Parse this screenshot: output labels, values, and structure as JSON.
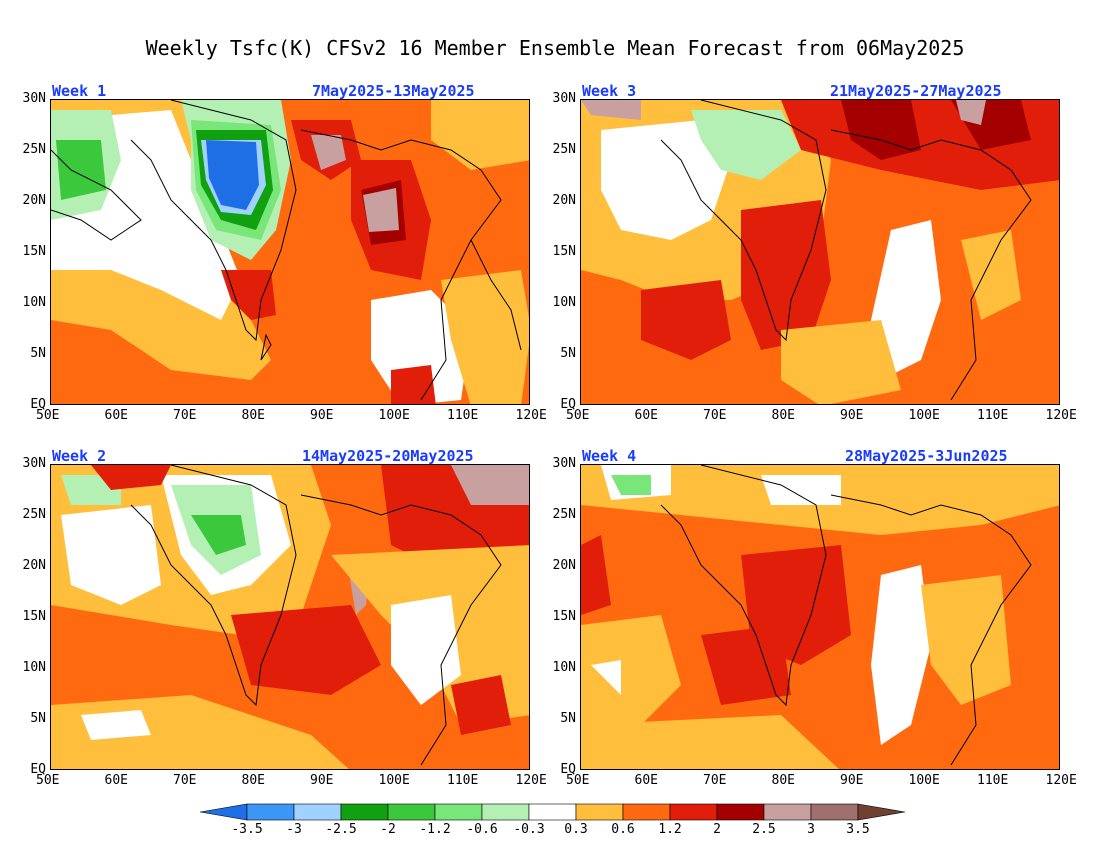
{
  "title": "Weekly Tsfc(K) CFSv2 16 Member Ensemble Mean Forecast from 06May2025",
  "panels": [
    {
      "week": "Week 1",
      "dates": "7May2025-13May2025"
    },
    {
      "week": "Week 3",
      "dates": "21May2025-27May2025"
    },
    {
      "week": "Week 2",
      "dates": "14May2025-20May2025"
    },
    {
      "week": "Week 4",
      "dates": "28May2025-3Jun2025"
    }
  ],
  "lat_ticks": [
    "30N",
    "25N",
    "20N",
    "15N",
    "10N",
    "5N",
    "EQ"
  ],
  "lon_ticks": [
    "50E",
    "60E",
    "70E",
    "80E",
    "90E",
    "100E",
    "110E",
    "120E"
  ],
  "colorbar": {
    "labels": [
      "-3.5",
      "-3",
      "-2.5",
      "-2",
      "-1.2",
      "-0.6",
      "-0.3",
      "0.3",
      "0.6",
      "1.2",
      "2",
      "2.5",
      "3",
      "3.5"
    ],
    "colors": [
      "#1e6ee6",
      "#3c96f5",
      "#a0d2ff",
      "#10a010",
      "#3cc83c",
      "#78e678",
      "#b4f0b4",
      "#ffffff",
      "#ffbe3c",
      "#ff6a10",
      "#e11e0a",
      "#a50000",
      "#c8a0a0",
      "#a07070",
      "#704030"
    ]
  }
}
